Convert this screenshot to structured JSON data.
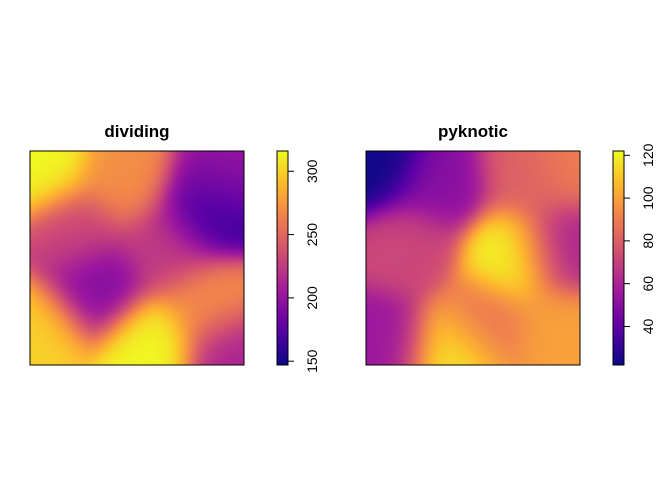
{
  "chart_data": [
    {
      "type": "heatmap",
      "title": "dividing",
      "colorbar": {
        "range": [
          147,
          316
        ],
        "ticks": [
          150,
          200,
          250,
          300
        ],
        "labels": [
          "150",
          "200",
          "250",
          "300"
        ]
      },
      "palette": [
        "#0d0887",
        "#5c01a6",
        "#9c179e",
        "#cc4778",
        "#ed7953",
        "#fdb42f",
        "#f0f921"
      ],
      "blobs": [
        {
          "x": 0.05,
          "y": 0.92,
          "value": 316
        },
        {
          "x": 0.45,
          "y": 0.88,
          "value": 270
        },
        {
          "x": 0.88,
          "y": 0.84,
          "value": 205
        },
        {
          "x": 0.85,
          "y": 0.72,
          "value": 150
        },
        {
          "x": 0.2,
          "y": 0.62,
          "value": 230
        },
        {
          "x": 0.65,
          "y": 0.55,
          "value": 225
        },
        {
          "x": 0.3,
          "y": 0.35,
          "value": 190
        },
        {
          "x": 0.05,
          "y": 0.15,
          "value": 300
        },
        {
          "x": 0.55,
          "y": 0.08,
          "value": 316
        },
        {
          "x": 0.85,
          "y": 0.3,
          "value": 270
        },
        {
          "x": 0.95,
          "y": 0.05,
          "value": 210
        }
      ]
    },
    {
      "type": "heatmap",
      "title": "pyknotic",
      "colorbar": {
        "range": [
          22,
          122
        ],
        "ticks": [
          40,
          60,
          80,
          100,
          120
        ],
        "labels": [
          "40",
          "60",
          "80",
          "100",
          "120"
        ]
      },
      "palette": [
        "#0d0887",
        "#5c01a6",
        "#9c179e",
        "#cc4778",
        "#ed7953",
        "#fdb42f",
        "#f0f921"
      ],
      "blobs": [
        {
          "x": 0.05,
          "y": 0.95,
          "value": 22
        },
        {
          "x": 0.35,
          "y": 0.85,
          "value": 50
        },
        {
          "x": 0.75,
          "y": 0.9,
          "value": 80
        },
        {
          "x": 0.95,
          "y": 0.95,
          "value": 90
        },
        {
          "x": 0.2,
          "y": 0.55,
          "value": 72
        },
        {
          "x": 0.68,
          "y": 0.5,
          "value": 122
        },
        {
          "x": 0.92,
          "y": 0.55,
          "value": 60
        },
        {
          "x": 0.1,
          "y": 0.1,
          "value": 55
        },
        {
          "x": 0.4,
          "y": 0.05,
          "value": 120
        },
        {
          "x": 0.55,
          "y": 0.2,
          "value": 85
        },
        {
          "x": 0.9,
          "y": 0.15,
          "value": 100
        }
      ]
    }
  ]
}
